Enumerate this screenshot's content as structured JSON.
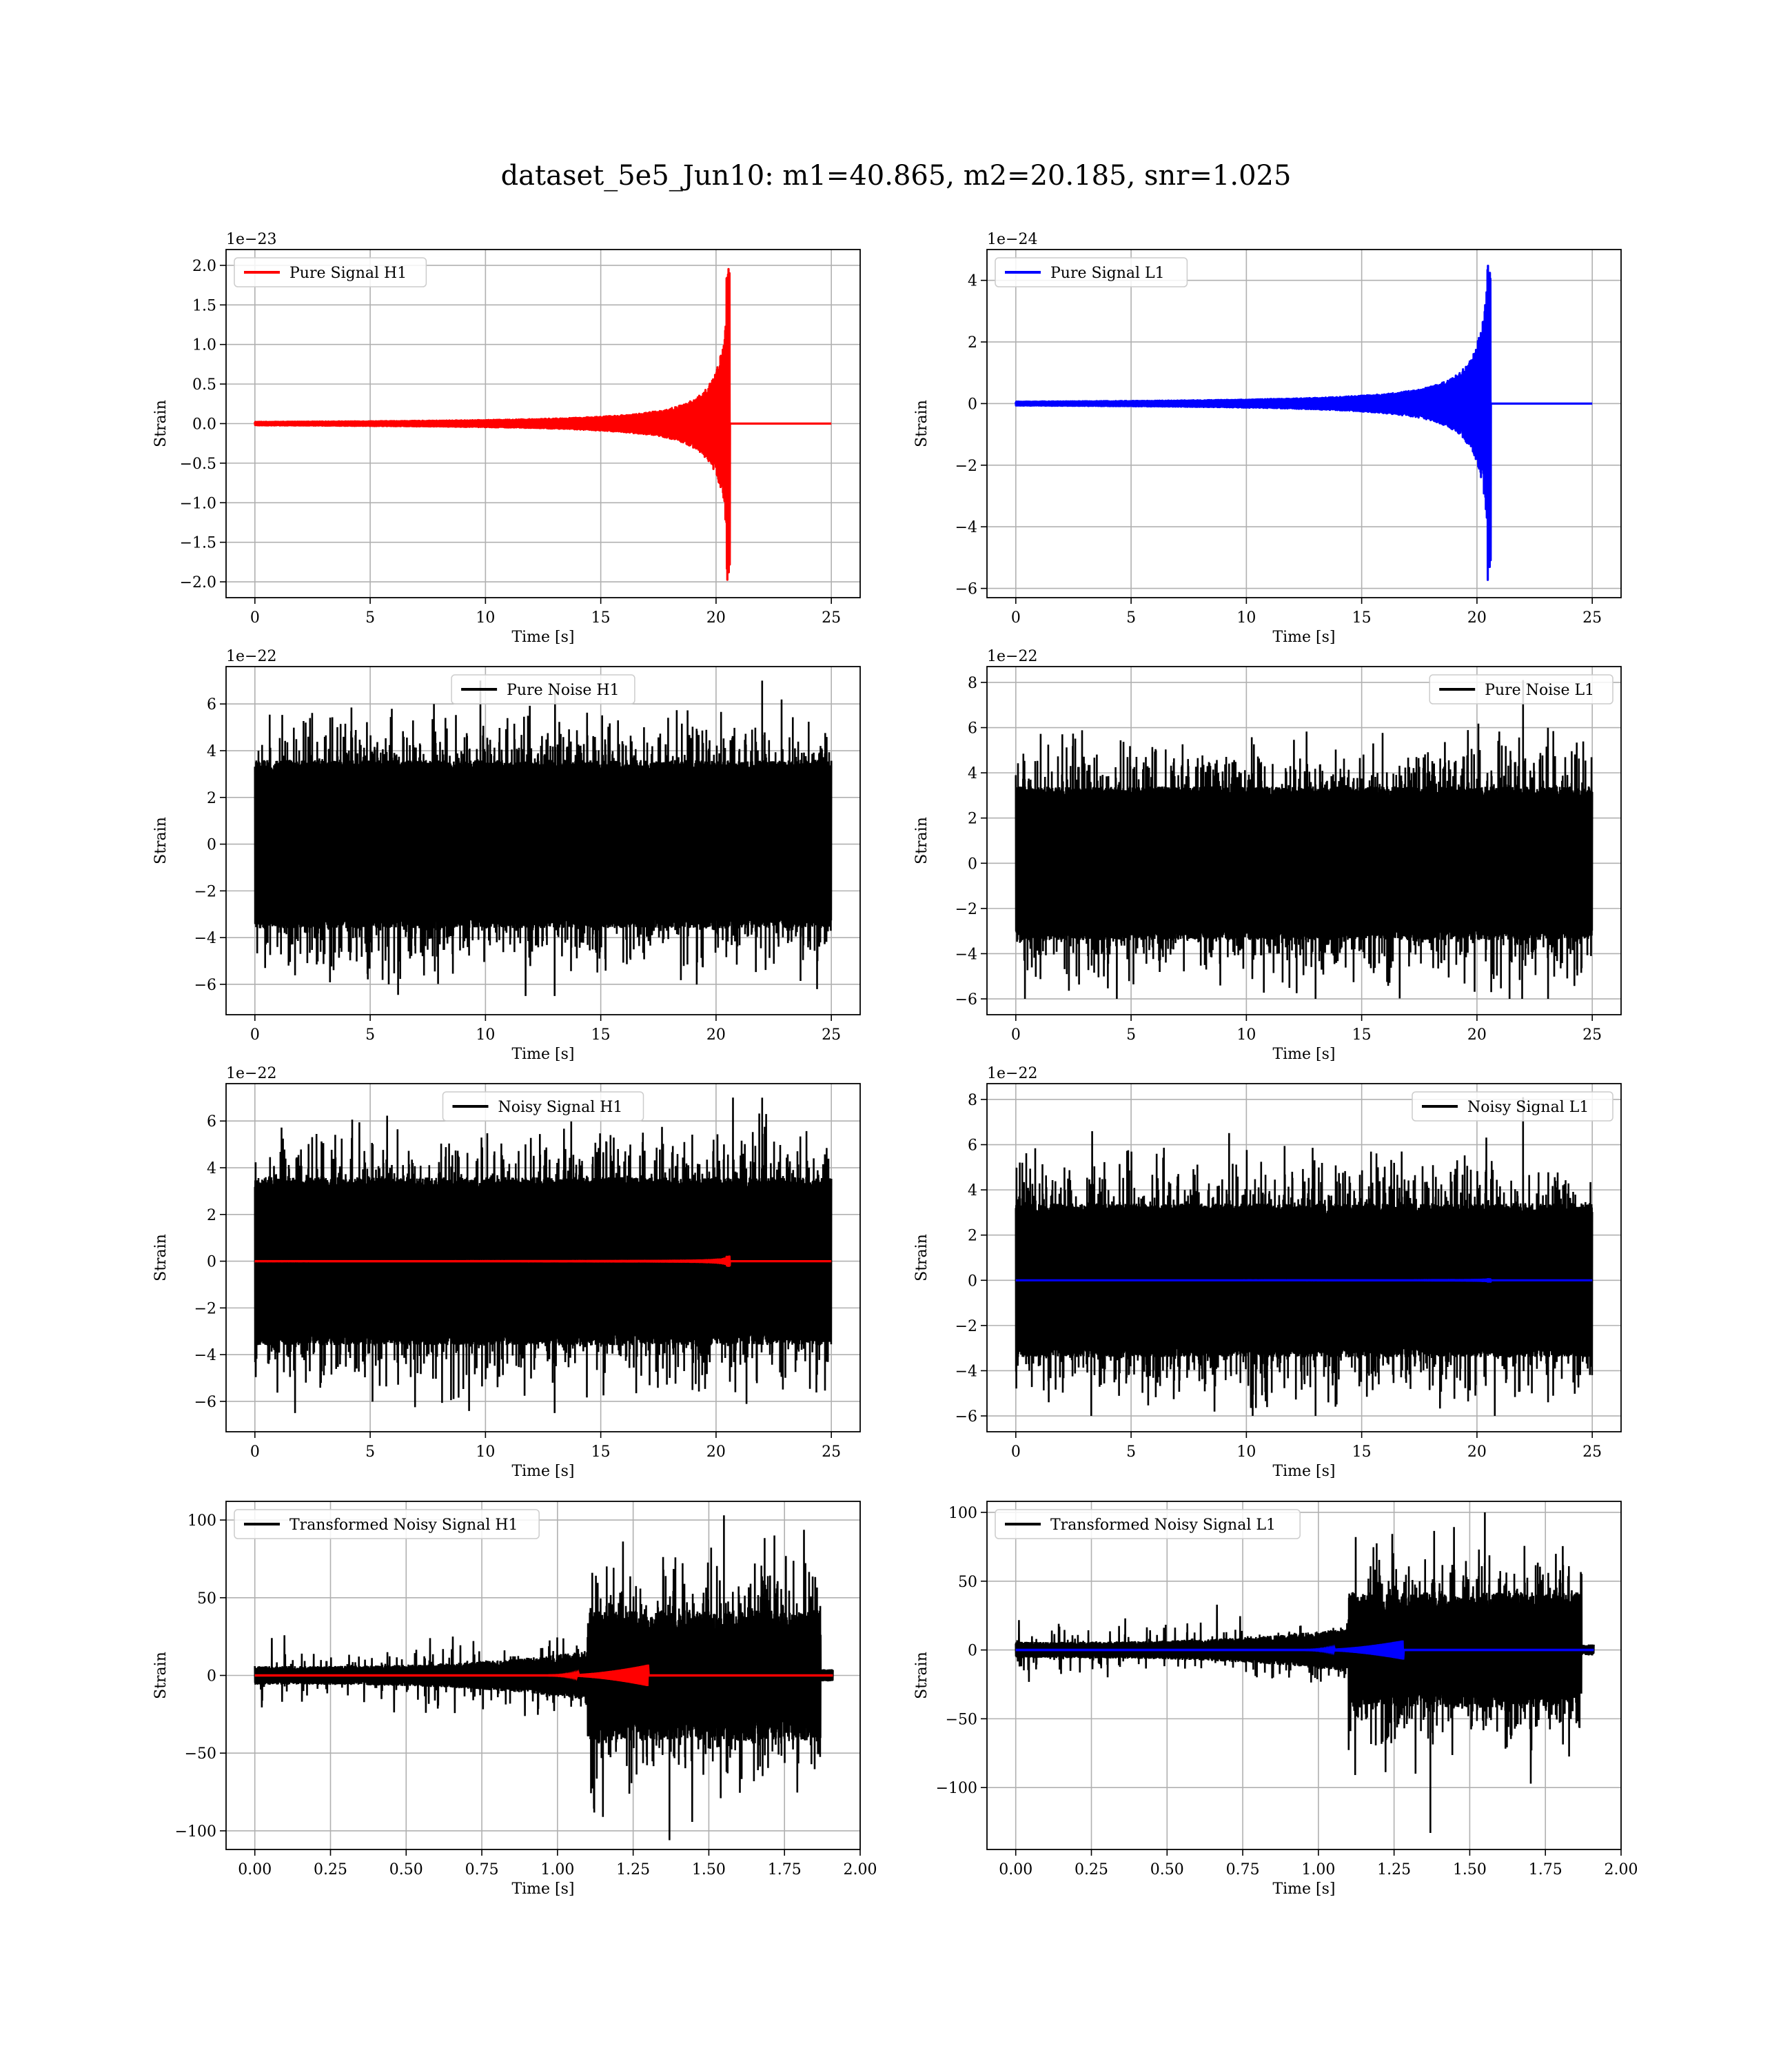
{
  "figure": {
    "title": "dataset_5e5_Jun10: m1=40.865, m2=20.185, snr=1.025"
  },
  "colors": {
    "h1_signal": "#ff0000",
    "l1_signal": "#0000ff",
    "noise": "#000000",
    "grid": "#b0b0b0"
  },
  "chart_data": [
    {
      "id": "pure-signal-h1",
      "type": "line",
      "xlabel": "Time [s]",
      "ylabel": "Strain",
      "offset_label": "1e−23",
      "xlim": [
        -1.25,
        26.25
      ],
      "ylim": [
        -2.2,
        2.2
      ],
      "xticks": [
        0,
        5,
        10,
        15,
        20,
        25
      ],
      "xtick_labels": [
        "0",
        "5",
        "10",
        "15",
        "20",
        "25"
      ],
      "yticks": [
        -2.0,
        -1.5,
        -1.0,
        -0.5,
        0.0,
        0.5,
        1.0,
        1.5,
        2.0
      ],
      "ytick_labels": [
        "−2.0",
        "−1.5",
        "−1.0",
        "−0.5",
        "0.0",
        "0.5",
        "1.0",
        "1.5",
        "2.0"
      ],
      "grid": true,
      "legend_position": "upper-left",
      "series": [
        {
          "name": "Pure Signal H1",
          "color": "#ff0000",
          "kind": "chirp",
          "t_start": 0,
          "t_end": 25,
          "t_merge": 20.6,
          "peak": 2.0,
          "trough": -2.0
        }
      ]
    },
    {
      "id": "pure-signal-l1",
      "type": "line",
      "xlabel": "Time [s]",
      "ylabel": "Strain",
      "offset_label": "1e−24",
      "xlim": [
        -1.25,
        26.25
      ],
      "ylim": [
        -6.3,
        5.0
      ],
      "xticks": [
        0,
        5,
        10,
        15,
        20,
        25
      ],
      "xtick_labels": [
        "0",
        "5",
        "10",
        "15",
        "20",
        "25"
      ],
      "yticks": [
        -6,
        -4,
        -2,
        0,
        2,
        4
      ],
      "ytick_labels": [
        "−6",
        "−4",
        "−2",
        "0",
        "2",
        "4"
      ],
      "grid": true,
      "legend_position": "upper-left",
      "series": [
        {
          "name": "Pure Signal L1",
          "color": "#0000ff",
          "kind": "chirp",
          "t_start": 0,
          "t_end": 25,
          "t_merge": 20.6,
          "peak": 4.5,
          "trough": -5.8
        }
      ]
    },
    {
      "id": "pure-noise-h1",
      "type": "line",
      "xlabel": "Time [s]",
      "ylabel": "Strain",
      "offset_label": "1e−22",
      "xlim": [
        -1.25,
        26.25
      ],
      "ylim": [
        -7.3,
        7.6
      ],
      "xticks": [
        0,
        5,
        10,
        15,
        20,
        25
      ],
      "xtick_labels": [
        "0",
        "5",
        "10",
        "15",
        "20",
        "25"
      ],
      "yticks": [
        -6,
        -4,
        -2,
        0,
        2,
        4,
        6
      ],
      "ytick_labels": [
        "−6",
        "−4",
        "−2",
        "0",
        "2",
        "4",
        "6"
      ],
      "grid": true,
      "legend_position": "upper-center",
      "series": [
        {
          "name": "Pure Noise H1",
          "color": "#000000",
          "kind": "noise",
          "t_start": 0,
          "t_end": 25,
          "band": 3.6,
          "max": 7.0,
          "min": -6.5
        }
      ]
    },
    {
      "id": "pure-noise-l1",
      "type": "line",
      "xlabel": "Time [s]",
      "ylabel": "Strain",
      "offset_label": "1e−22",
      "xlim": [
        -1.25,
        26.25
      ],
      "ylim": [
        -6.7,
        8.7
      ],
      "xticks": [
        0,
        5,
        10,
        15,
        20,
        25
      ],
      "xtick_labels": [
        "0",
        "5",
        "10",
        "15",
        "20",
        "25"
      ],
      "yticks": [
        -6,
        -4,
        -2,
        0,
        2,
        4,
        6,
        8
      ],
      "ytick_labels": [
        "−6",
        "−4",
        "−2",
        "0",
        "2",
        "4",
        "6",
        "8"
      ],
      "grid": true,
      "legend_position": "upper-right",
      "series": [
        {
          "name": "Pure Noise L1",
          "color": "#000000",
          "kind": "noise",
          "t_start": 0,
          "t_end": 25,
          "band": 3.4,
          "max": 8.1,
          "min": -6.0
        }
      ]
    },
    {
      "id": "noisy-signal-h1",
      "type": "line",
      "xlabel": "Time [s]",
      "ylabel": "Strain",
      "offset_label": "1e−22",
      "xlim": [
        -1.25,
        26.25
      ],
      "ylim": [
        -7.3,
        7.6
      ],
      "xticks": [
        0,
        5,
        10,
        15,
        20,
        25
      ],
      "xtick_labels": [
        "0",
        "5",
        "10",
        "15",
        "20",
        "25"
      ],
      "yticks": [
        -6,
        -4,
        -2,
        0,
        2,
        4,
        6
      ],
      "ytick_labels": [
        "−6",
        "−4",
        "−2",
        "0",
        "2",
        "4",
        "6"
      ],
      "grid": true,
      "legend_position": "upper-center",
      "series": [
        {
          "name": "Noisy Signal H1",
          "color": "#000000",
          "kind": "noise",
          "t_start": 0,
          "t_end": 25,
          "band": 3.6,
          "max": 7.0,
          "min": -6.5
        },
        {
          "color": "#ff0000",
          "kind": "chirp",
          "t_start": 0,
          "t_end": 25,
          "t_merge": 20.6,
          "peak": 0.2,
          "trough": -0.2
        }
      ]
    },
    {
      "id": "noisy-signal-l1",
      "type": "line",
      "xlabel": "Time [s]",
      "ylabel": "Strain",
      "offset_label": "1e−22",
      "xlim": [
        -1.25,
        26.25
      ],
      "ylim": [
        -6.7,
        8.7
      ],
      "xticks": [
        0,
        5,
        10,
        15,
        20,
        25
      ],
      "xtick_labels": [
        "0",
        "5",
        "10",
        "15",
        "20",
        "25"
      ],
      "yticks": [
        -6,
        -4,
        -2,
        0,
        2,
        4,
        6,
        8
      ],
      "ytick_labels": [
        "−6",
        "−4",
        "−2",
        "0",
        "2",
        "4",
        "6",
        "8"
      ],
      "grid": true,
      "legend_position": "upper-right",
      "series": [
        {
          "name": "Noisy Signal L1",
          "color": "#000000",
          "kind": "noise",
          "t_start": 0,
          "t_end": 25,
          "band": 3.4,
          "max": 8.1,
          "min": -6.0
        },
        {
          "color": "#0000ff",
          "kind": "chirp",
          "t_start": 0,
          "t_end": 25,
          "t_merge": 20.6,
          "peak": 0.05,
          "trough": -0.06
        }
      ]
    },
    {
      "id": "transformed-noisy-signal-h1",
      "type": "line",
      "xlabel": "Time [s]",
      "ylabel": "Strain",
      "offset_label": "",
      "xlim": [
        -0.095,
        2.0
      ],
      "ylim": [
        -112,
        112
      ],
      "xticks": [
        0.0,
        0.25,
        0.5,
        0.75,
        1.0,
        1.25,
        1.5,
        1.75,
        2.0
      ],
      "xtick_labels": [
        "0.00",
        "0.25",
        "0.50",
        "0.75",
        "1.00",
        "1.25",
        "1.50",
        "1.75",
        "2.00"
      ],
      "yticks": [
        -100,
        -50,
        0,
        50,
        100
      ],
      "ytick_labels": [
        "−100",
        "−50",
        "0",
        "50",
        "100"
      ],
      "grid": true,
      "legend_position": "upper-left",
      "series": [
        {
          "name": "Transformed Noisy Signal H1",
          "color": "#000000",
          "kind": "transformed",
          "t_start": 0,
          "t_end": 1.91,
          "max": 103,
          "min": -106
        },
        {
          "color": "#ff0000",
          "kind": "transformed-chirp",
          "t_start": 0,
          "t_end": 1.91,
          "t_merge": 1.3
        }
      ]
    },
    {
      "id": "transformed-noisy-signal-l1",
      "type": "line",
      "xlabel": "Time [s]",
      "ylabel": "Strain",
      "offset_label": "",
      "xlim": [
        -0.095,
        2.0
      ],
      "ylim": [
        -145,
        108
      ],
      "xticks": [
        0.0,
        0.25,
        0.5,
        0.75,
        1.0,
        1.25,
        1.5,
        1.75,
        2.0
      ],
      "xtick_labels": [
        "0.00",
        "0.25",
        "0.50",
        "0.75",
        "1.00",
        "1.25",
        "1.50",
        "1.75",
        "2.00"
      ],
      "yticks": [
        -100,
        -50,
        0,
        50,
        100
      ],
      "ytick_labels": [
        "−100",
        "−50",
        "0",
        "50",
        "100"
      ],
      "grid": true,
      "legend_position": "upper-left",
      "series": [
        {
          "name": "Transformed Noisy Signal L1",
          "color": "#000000",
          "kind": "transformed",
          "t_start": 0,
          "t_end": 1.91,
          "max": 100,
          "min": -133
        },
        {
          "color": "#0000ff",
          "kind": "transformed-chirp",
          "t_start": 0,
          "t_end": 1.91,
          "t_merge": 1.28
        }
      ]
    }
  ]
}
